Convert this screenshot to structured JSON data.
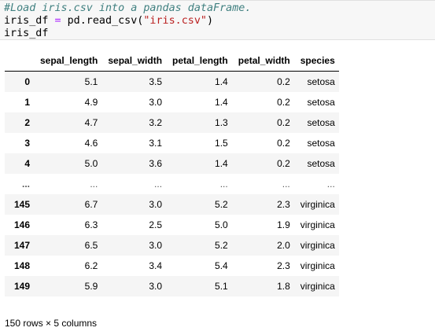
{
  "code": {
    "comment": "#Load iris.csv into a pandas dataFrame.",
    "line2_var": "iris_df ",
    "line2_op": "=",
    "line2_call": " pd.read_csv(",
    "line2_str": "\"iris.csv\"",
    "line2_close": ")",
    "line3": "iris_df"
  },
  "table": {
    "index_header": "",
    "columns": [
      "sepal_length",
      "sepal_width",
      "petal_length",
      "petal_width",
      "species"
    ],
    "rows": [
      {
        "index": "0",
        "values": [
          "5.1",
          "3.5",
          "1.4",
          "0.2",
          "setosa"
        ]
      },
      {
        "index": "1",
        "values": [
          "4.9",
          "3.0",
          "1.4",
          "0.2",
          "setosa"
        ]
      },
      {
        "index": "2",
        "values": [
          "4.7",
          "3.2",
          "1.3",
          "0.2",
          "setosa"
        ]
      },
      {
        "index": "3",
        "values": [
          "4.6",
          "3.1",
          "1.5",
          "0.2",
          "setosa"
        ]
      },
      {
        "index": "4",
        "values": [
          "5.0",
          "3.6",
          "1.4",
          "0.2",
          "setosa"
        ]
      },
      {
        "index": "...",
        "values": [
          "...",
          "...",
          "...",
          "...",
          "..."
        ]
      },
      {
        "index": "145",
        "values": [
          "6.7",
          "3.0",
          "5.2",
          "2.3",
          "virginica"
        ]
      },
      {
        "index": "146",
        "values": [
          "6.3",
          "2.5",
          "5.0",
          "1.9",
          "virginica"
        ]
      },
      {
        "index": "147",
        "values": [
          "6.5",
          "3.0",
          "5.2",
          "2.0",
          "virginica"
        ]
      },
      {
        "index": "148",
        "values": [
          "6.2",
          "3.4",
          "5.4",
          "2.3",
          "virginica"
        ]
      },
      {
        "index": "149",
        "values": [
          "5.9",
          "3.0",
          "5.1",
          "1.8",
          "virginica"
        ]
      }
    ]
  },
  "shape_text": "150 rows × 5 columns"
}
